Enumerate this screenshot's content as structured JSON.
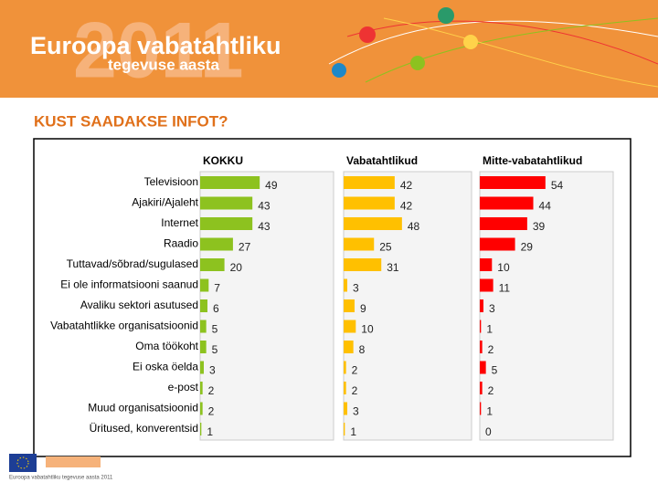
{
  "header": {
    "line1": "Euroopa vabatahtliku",
    "line2": "tegevuse aasta",
    "year": "2011"
  },
  "chart_data": {
    "type": "bar",
    "orientation": "horizontal",
    "title": "KUST SAADAKSE INFOT?",
    "categories": [
      "Televisioon",
      "Ajakiri/Ajaleht",
      "Internet",
      "Raadio",
      "Tuttavad/sõbrad/sugulased",
      "Ei ole informatsiooni saanud",
      "Avaliku sektori asutused",
      "Vabatahtlikke organisatsioonid",
      "Oma töökoht",
      "Ei oska öelda",
      "e-post",
      "Muud organisatsioonid",
      "Üritused, konverentsid"
    ],
    "series": [
      {
        "name": "KOKKU",
        "color": "#8dc21f",
        "values": [
          49,
          43,
          43,
          27,
          20,
          7,
          6,
          5,
          5,
          3,
          2,
          2,
          1
        ]
      },
      {
        "name": "Vabatahtlikud",
        "color": "#ffc000",
        "values": [
          42,
          42,
          48,
          25,
          31,
          3,
          9,
          10,
          8,
          2,
          2,
          3,
          1
        ]
      },
      {
        "name": "Mitte-vabatahtlikud",
        "color": "#ff0000",
        "values": [
          54,
          44,
          39,
          29,
          10,
          11,
          3,
          1,
          2,
          5,
          2,
          1,
          0
        ]
      }
    ]
  },
  "footer": {
    "caption": "Euroopa vabatahtliku tegevuse aasta 2011"
  }
}
